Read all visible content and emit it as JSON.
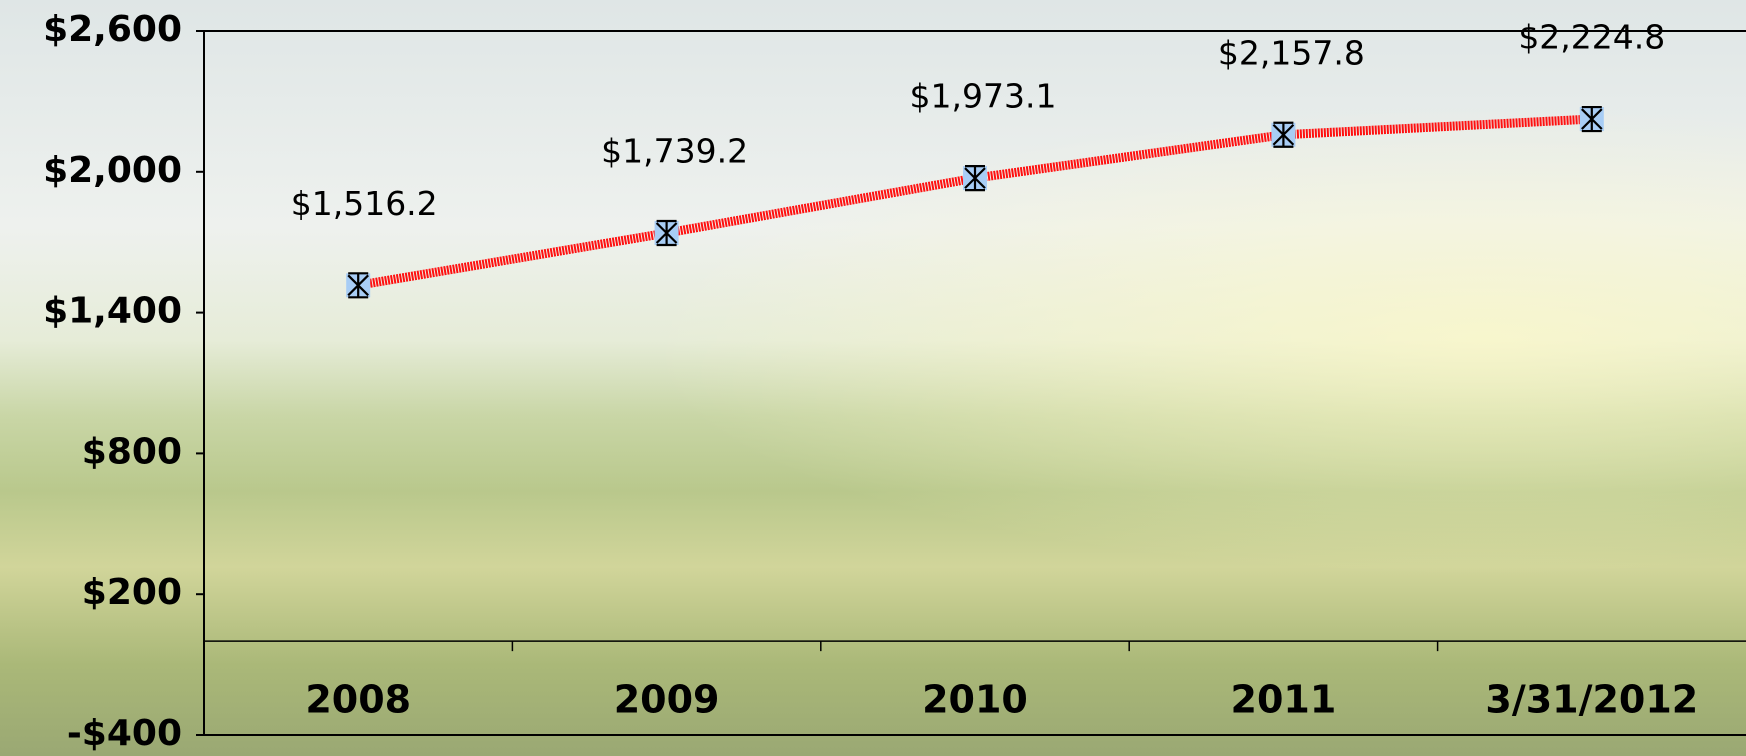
{
  "chart_data": {
    "type": "line",
    "categories": [
      "2008",
      "2009",
      "2010",
      "2011",
      "3/31/2012"
    ],
    "values": [
      1516.2,
      1739.2,
      1973.1,
      2157.8,
      2224.8
    ],
    "value_labels": [
      "$1,516.2",
      "$1,739.2",
      "$1,973.1",
      "$2,157.8",
      "$2,224.8"
    ],
    "color": "#ff1010",
    "marker_color": "#a8cdf5",
    "ylim": [
      -400,
      2600
    ],
    "yticks": [
      {
        "value": -400,
        "label": "-$400"
      },
      {
        "value": 200,
        "label": "$200"
      },
      {
        "value": 800,
        "label": "$800"
      },
      {
        "value": 1400,
        "label": "$1,400"
      },
      {
        "value": 2000,
        "label": "$2,000"
      },
      {
        "value": 2600,
        "label": "$2,600"
      }
    ]
  }
}
